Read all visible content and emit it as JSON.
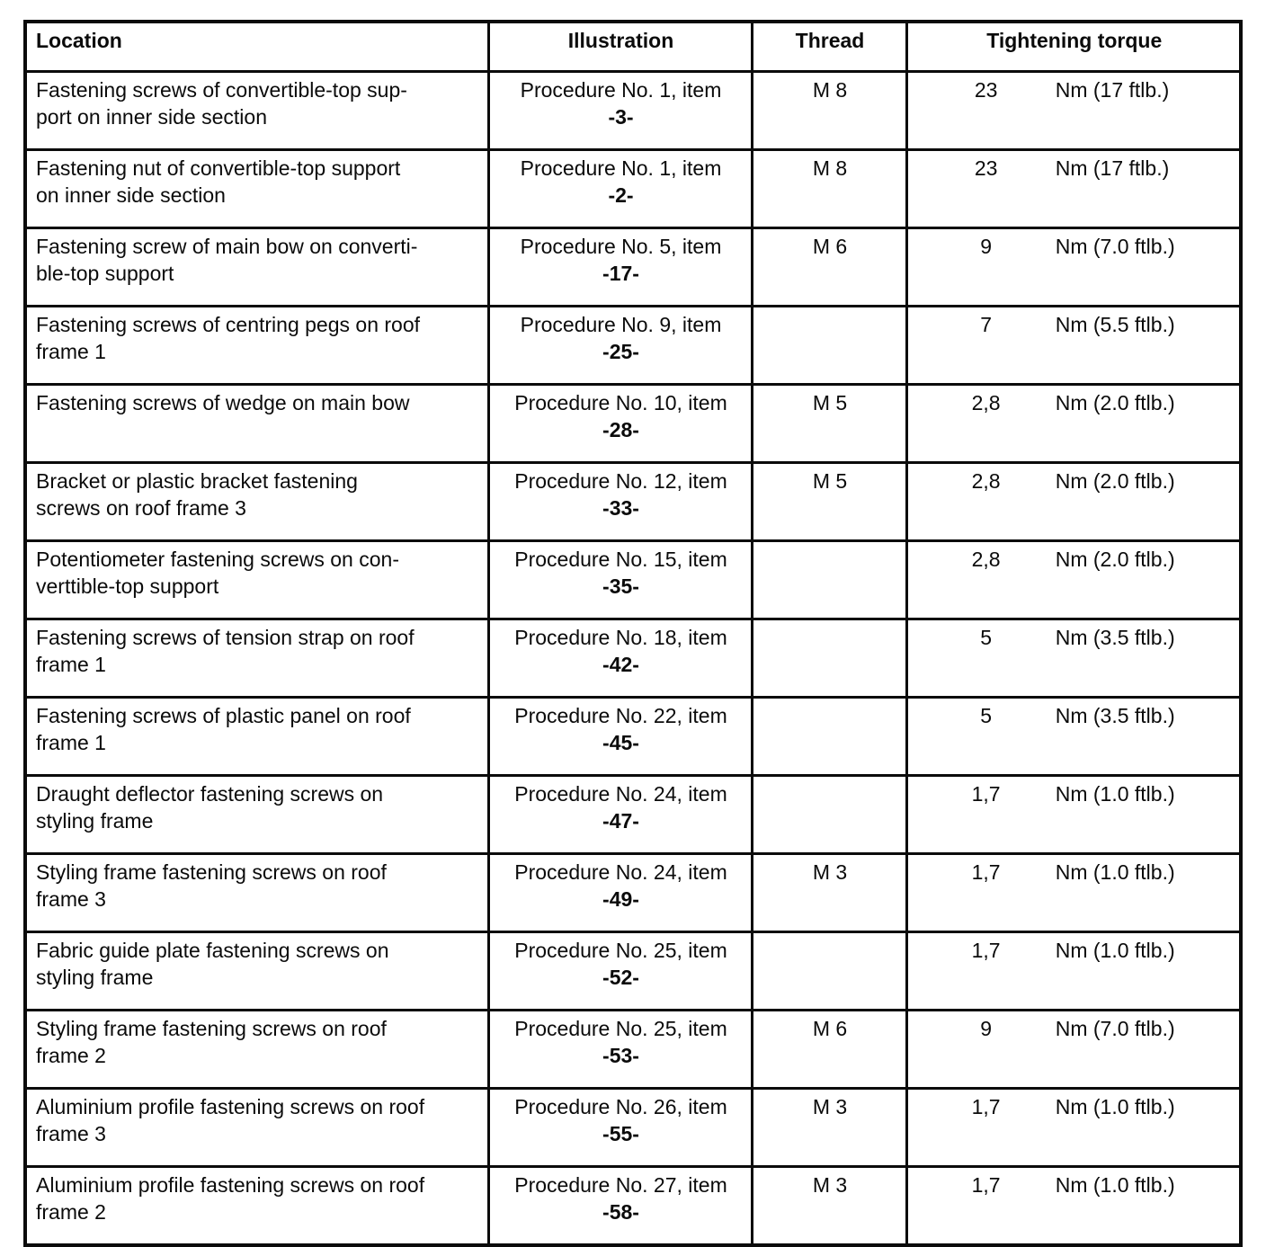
{
  "table": {
    "headers": {
      "location": "Location",
      "illustration": "Illustration",
      "thread": "Thread",
      "torque": "Tightening torque"
    },
    "rows": [
      {
        "location": "Fastening screws of convertible-top sup-\nport on inner side section",
        "illustration_procedure": "Procedure No. 1, item",
        "illustration_item": "-3-",
        "thread": "M 8",
        "torque_value": "23",
        "torque_unit": "Nm (17 ftlb.)"
      },
      {
        "location": "Fastening nut of convertible-top support\non inner side section",
        "illustration_procedure": "Procedure No. 1, item",
        "illustration_item": "-2-",
        "thread": "M 8",
        "torque_value": "23",
        "torque_unit": "Nm (17 ftlb.)"
      },
      {
        "location": "Fastening screw of main bow on converti-\nble-top support",
        "illustration_procedure": "Procedure No. 5, item",
        "illustration_item": "-17-",
        "thread": "M 6",
        "torque_value": "9",
        "torque_unit": "Nm (7.0 ftlb.)"
      },
      {
        "location": "Fastening screws of centring pegs on roof\nframe 1",
        "illustration_procedure": "Procedure No. 9, item",
        "illustration_item": "-25-",
        "thread": "",
        "torque_value": "7",
        "torque_unit": "Nm (5.5 ftlb.)"
      },
      {
        "location": "Fastening screws of wedge on main bow",
        "illustration_procedure": "Procedure No. 10, item",
        "illustration_item": "-28-",
        "thread": "M 5",
        "torque_value": "2,8",
        "torque_unit": "Nm (2.0 ftlb.)"
      },
      {
        "location": "Bracket or plastic bracket fastening\nscrews on roof frame 3",
        "illustration_procedure": "Procedure No. 12, item",
        "illustration_item": "-33-",
        "thread": "M 5",
        "torque_value": "2,8",
        "torque_unit": "Nm (2.0 ftlb.)"
      },
      {
        "location": "Potentiometer fastening screws on con-\nverttible-top support",
        "illustration_procedure": "Procedure No. 15, item",
        "illustration_item": "-35-",
        "thread": "",
        "torque_value": "2,8",
        "torque_unit": "Nm (2.0 ftlb.)"
      },
      {
        "location": "Fastening screws of tension strap on roof\nframe 1",
        "illustration_procedure": "Procedure No. 18, item",
        "illustration_item": "-42-",
        "thread": "",
        "torque_value": "5",
        "torque_unit": "Nm (3.5 ftlb.)"
      },
      {
        "location": "Fastening screws of plastic panel on roof\nframe 1",
        "illustration_procedure": "Procedure No. 22, item",
        "illustration_item": "-45-",
        "thread": "",
        "torque_value": "5",
        "torque_unit": "Nm (3.5 ftlb.)"
      },
      {
        "location": "Draught deflector fastening screws on\nstyling frame",
        "illustration_procedure": "Procedure No. 24, item",
        "illustration_item": "-47-",
        "thread": "",
        "torque_value": "1,7",
        "torque_unit": "Nm (1.0 ftlb.)"
      },
      {
        "location": "Styling frame fastening screws on roof\nframe 3",
        "illustration_procedure": "Procedure No. 24, item",
        "illustration_item": "-49-",
        "thread": "M 3",
        "torque_value": "1,7",
        "torque_unit": "Nm (1.0 ftlb.)"
      },
      {
        "location": "Fabric guide plate fastening screws on\nstyling frame",
        "illustration_procedure": "Procedure No. 25, item",
        "illustration_item": "-52-",
        "thread": "",
        "torque_value": "1,7",
        "torque_unit": "Nm (1.0 ftlb.)"
      },
      {
        "location": "Styling frame fastening screws on roof\nframe 2",
        "illustration_procedure": "Procedure No. 25, item",
        "illustration_item": "-53-",
        "thread": "M 6",
        "torque_value": "9",
        "torque_unit": "Nm (7.0 ftlb.)"
      },
      {
        "location": "Aluminium profile fastening screws on roof\nframe 3",
        "illustration_procedure": "Procedure No. 26, item",
        "illustration_item": "-55-",
        "thread": "M 3",
        "torque_value": "1,7",
        "torque_unit": "Nm (1.0 ftlb.)"
      },
      {
        "location": "Aluminium profile fastening screws on roof\nframe 2",
        "illustration_procedure": "Procedure No. 27, item",
        "illustration_item": "-58-",
        "thread": "M 3",
        "torque_value": "1,7",
        "torque_unit": "Nm (1.0 ftlb.)"
      }
    ]
  }
}
